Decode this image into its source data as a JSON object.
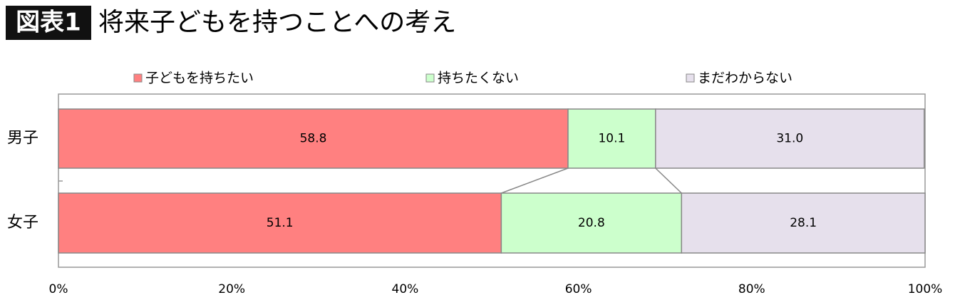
{
  "chart_data": {
    "type": "stacked-bar-horizontal",
    "figure_label": "図表1",
    "title": "将来子どもを持つことへの考え",
    "categories": [
      "男子",
      "女子"
    ],
    "series": [
      {
        "name": "子どもを持ちたい",
        "color": "#ff8080",
        "values": [
          58.8,
          51.1
        ]
      },
      {
        "name": "持ちたくない",
        "color": "#ccffcc",
        "values": [
          10.1,
          20.8
        ]
      },
      {
        "name": "まだわからない",
        "color": "#e6e0ec",
        "values": [
          31.0,
          28.1
        ],
        "value_labels": [
          "31.0",
          "28.1"
        ]
      }
    ],
    "xlim": [
      0,
      100
    ],
    "xticks": [
      {
        "value": 0,
        "label": "0%"
      },
      {
        "value": 20,
        "label": "20%"
      },
      {
        "value": 40,
        "label": "40%"
      },
      {
        "value": 60,
        "label": "60%"
      },
      {
        "value": 80,
        "label": "80%"
      },
      {
        "value": 100,
        "label": "100%"
      }
    ],
    "legend": "top"
  }
}
